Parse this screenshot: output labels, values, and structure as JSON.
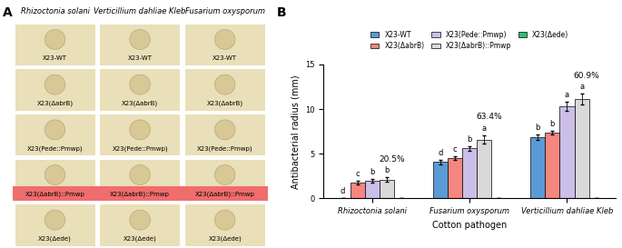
{
  "panel_labels": [
    "A",
    "B"
  ],
  "image_panel": {
    "columns": [
      "Rhizoctonia solani",
      "Verticillium dahliae Kleb",
      "Fusarium oxysporum"
    ],
    "rows": [
      {
        "labels": [
          "X23-WT",
          "X23-WT",
          "X23-WT"
        ],
        "highlight": false
      },
      {
        "labels": [
          "X23(ΔabrB)",
          "X23(ΔabrB)",
          "X23(ΔabrB)"
        ],
        "highlight": false
      },
      {
        "labels": [
          "X23(Pede::Pmwp)",
          "X23(Pede::Pmwp)",
          "X23(Pede::Pmwp)"
        ],
        "highlight": false
      },
      {
        "labels": [
          "X23(ΔabrB)::Pmwp",
          "X23(ΔabrB)::Pmwp",
          "X23(ΔabrB)::Pmwp"
        ],
        "highlight": true
      },
      {
        "labels": [
          "X23(Δede)",
          "X23(Δede)",
          "X23(Δede)"
        ],
        "highlight": false
      }
    ]
  },
  "chart_data": {
    "type": "bar",
    "categories": [
      "Rhizoctonia solani",
      "Fusarium oxysporum",
      "Verticillium dahliae Kleb"
    ],
    "x_label": "Cotton pathogen",
    "y_label": "Antibacterial radius (mm)",
    "ylim": [
      0,
      15
    ],
    "yticks": [
      0,
      5,
      10,
      15
    ],
    "legend": "upper center",
    "series": [
      {
        "name": "X23-WT",
        "color": "#5b9bd5",
        "values": [
          0,
          4.1,
          6.9
        ],
        "errors": [
          0,
          0.25,
          0.3
        ],
        "letters": [
          "d",
          "d",
          "b"
        ]
      },
      {
        "name": "X23(ΔabrB)",
        "color": "#f4877f",
        "values": [
          1.8,
          4.5,
          7.4
        ],
        "errors": [
          0.2,
          0.2,
          0.2
        ],
        "letters": [
          "c",
          "c",
          "b"
        ]
      },
      {
        "name": "X23(Pede::Pmwp)",
        "color": "#cbbfe8",
        "values": [
          2.0,
          5.6,
          10.3
        ],
        "errors": [
          0.2,
          0.25,
          0.5
        ],
        "letters": [
          "b",
          "b",
          "a"
        ]
      },
      {
        "name": "X23(ΔabrB)::Pmwp",
        "color": "#d9d9d9",
        "values": [
          2.1,
          6.6,
          11.1
        ],
        "errors": [
          0.25,
          0.45,
          0.6
        ],
        "letters": [
          "b",
          "a",
          "a"
        ],
        "notes": [
          "20.5%",
          "63.4%",
          "60.9%"
        ]
      },
      {
        "name": "X23(Δede)",
        "color": "#2fbf71",
        "values": [
          0,
          0,
          0
        ],
        "errors": [
          0,
          0,
          0
        ],
        "letters": [
          null,
          null,
          null
        ]
      }
    ]
  }
}
